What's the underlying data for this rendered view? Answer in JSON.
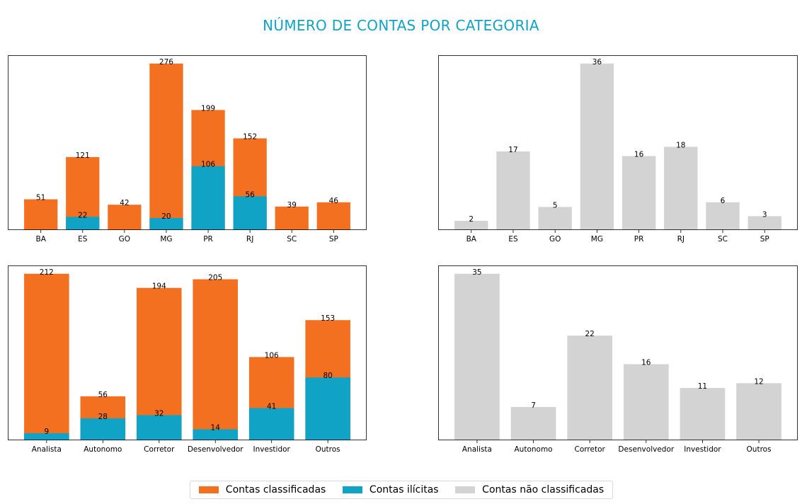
{
  "figure": {
    "title": "NÚMERO DE CONTAS POR CATEGORIA",
    "colors": {
      "classified": "#f37021",
      "illicit": "#10a3c5",
      "unclassified": "#d3d3d3"
    }
  },
  "legend": {
    "items": [
      {
        "label": "Contas classificadas",
        "color": "#f37021"
      },
      {
        "label": "Contas ilícitas",
        "color": "#10a3c5"
      },
      {
        "label": "Contas não classificadas",
        "color": "#d3d3d3"
      }
    ]
  },
  "chart_data": [
    {
      "type": "bar",
      "categories": [
        "BA",
        "ES",
        "GO",
        "MG",
        "PR",
        "RJ",
        "SC",
        "SP"
      ],
      "series": [
        {
          "name": "Contas classificadas",
          "values": [
            51,
            121,
            42,
            276,
            199,
            152,
            39,
            46
          ],
          "color": "#f37021"
        },
        {
          "name": "Contas ilícitas",
          "values": [
            0,
            22,
            0,
            20,
            106,
            56,
            0,
            0
          ],
          "color": "#10a3c5"
        }
      ],
      "labels": [
        [
          "51",
          "121",
          "42",
          "276",
          "199",
          "152",
          "39",
          "46"
        ],
        [
          "",
          "22",
          "",
          "20",
          "106",
          "56",
          "",
          ""
        ]
      ],
      "ylim": [
        0,
        289.8
      ]
    },
    {
      "type": "bar",
      "categories": [
        "BA",
        "ES",
        "GO",
        "MG",
        "PR",
        "RJ",
        "SC",
        "SP"
      ],
      "series": [
        {
          "name": "Contas não classificadas",
          "values": [
            2,
            17,
            5,
            36,
            16,
            18,
            6,
            3
          ],
          "color": "#d3d3d3"
        }
      ],
      "labels": [
        [
          "2",
          "17",
          "5",
          "36",
          "16",
          "18",
          "6",
          "3"
        ]
      ],
      "ylim": [
        0,
        37.8
      ]
    },
    {
      "type": "bar",
      "categories": [
        "Analista",
        "Autonomo",
        "Corretor",
        "Desenvolvedor",
        "Investidor",
        "Outros"
      ],
      "series": [
        {
          "name": "Contas classificadas",
          "values": [
            212,
            56,
            194,
            205,
            106,
            153
          ],
          "color": "#f37021"
        },
        {
          "name": "Contas ilícitas",
          "values": [
            9,
            28,
            32,
            14,
            41,
            80
          ],
          "color": "#10a3c5"
        }
      ],
      "labels": [
        [
          "212",
          "56",
          "194",
          "205",
          "106",
          "153"
        ],
        [
          "9",
          "28",
          "32",
          "14",
          "41",
          "80"
        ]
      ],
      "ylim": [
        0,
        222.6
      ]
    },
    {
      "type": "bar",
      "categories": [
        "Analista",
        "Autonomo",
        "Corretor",
        "Desenvolvedor",
        "Investidor",
        "Outros"
      ],
      "series": [
        {
          "name": "Contas não classificadas",
          "values": [
            35,
            7,
            22,
            16,
            11,
            12
          ],
          "color": "#d3d3d3"
        }
      ],
      "labels": [
        [
          "35",
          "7",
          "22",
          "16",
          "11",
          "12"
        ]
      ],
      "ylim": [
        0,
        36.75
      ]
    }
  ]
}
